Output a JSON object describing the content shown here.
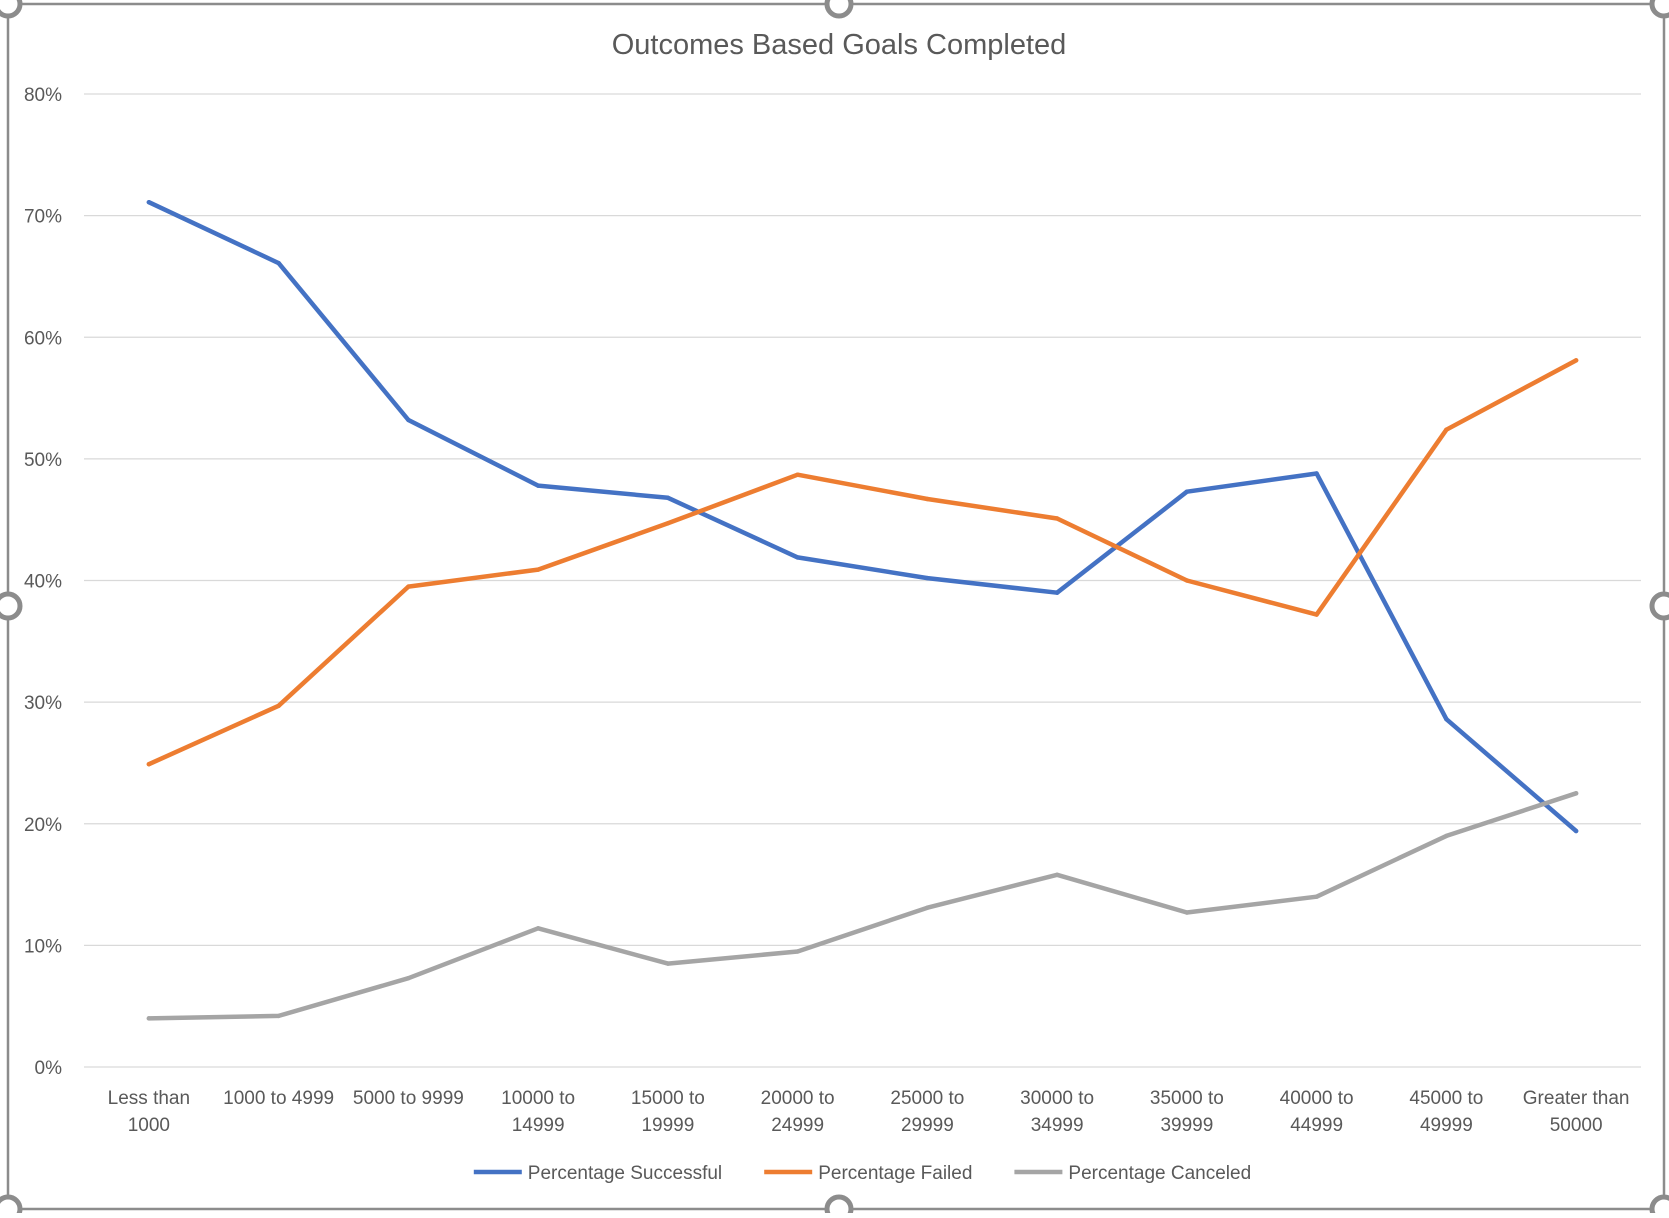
{
  "chart_data": {
    "type": "line",
    "title": "Outcomes Based Goals Completed",
    "xlabel": "",
    "ylabel": "",
    "categories": [
      "Less than 1000",
      "1000 to 4999",
      "5000 to 9999",
      "10000 to 14999",
      "15000 to 19999",
      "20000 to 24999",
      "25000 to 29999",
      "30000 to 34999",
      "35000 to 39999",
      "40000 to 44999",
      "45000 to 49999",
      "Greater than 50000"
    ],
    "category_label_lines": [
      [
        "Less than",
        "1000"
      ],
      [
        "1000 to 4999"
      ],
      [
        "5000 to 9999"
      ],
      [
        "10000 to",
        "14999"
      ],
      [
        "15000 to",
        "19999"
      ],
      [
        "20000 to",
        "24999"
      ],
      [
        "25000 to",
        "29999"
      ],
      [
        "30000 to",
        "34999"
      ],
      [
        "35000 to",
        "39999"
      ],
      [
        "40000 to",
        "44999"
      ],
      [
        "45000 to",
        "49999"
      ],
      [
        "Greater than",
        "50000"
      ]
    ],
    "ylim": [
      0,
      0.8
    ],
    "yticks": [
      0,
      0.1,
      0.2,
      0.3,
      0.4,
      0.5,
      0.6,
      0.7,
      0.8
    ],
    "ytick_labels": [
      "0%",
      "10%",
      "20%",
      "30%",
      "40%",
      "50%",
      "60%",
      "70%",
      "80%"
    ],
    "grid": true,
    "legend_position": "bottom",
    "series": [
      {
        "name": "Percentage Successful",
        "color": "#4472c4",
        "values": [
          0.711,
          0.661,
          0.532,
          0.478,
          0.468,
          0.419,
          0.402,
          0.39,
          0.473,
          0.488,
          0.286,
          0.194
        ]
      },
      {
        "name": "Percentage Failed",
        "color": "#ed7d31",
        "values": [
          0.249,
          0.297,
          0.395,
          0.409,
          0.447,
          0.487,
          0.467,
          0.451,
          0.4,
          0.372,
          0.524,
          0.581
        ]
      },
      {
        "name": "Percentage Canceled",
        "color": "#a5a5a5",
        "values": [
          0.04,
          0.042,
          0.073,
          0.114,
          0.085,
          0.095,
          0.131,
          0.158,
          0.127,
          0.14,
          0.19,
          0.225
        ]
      }
    ]
  }
}
